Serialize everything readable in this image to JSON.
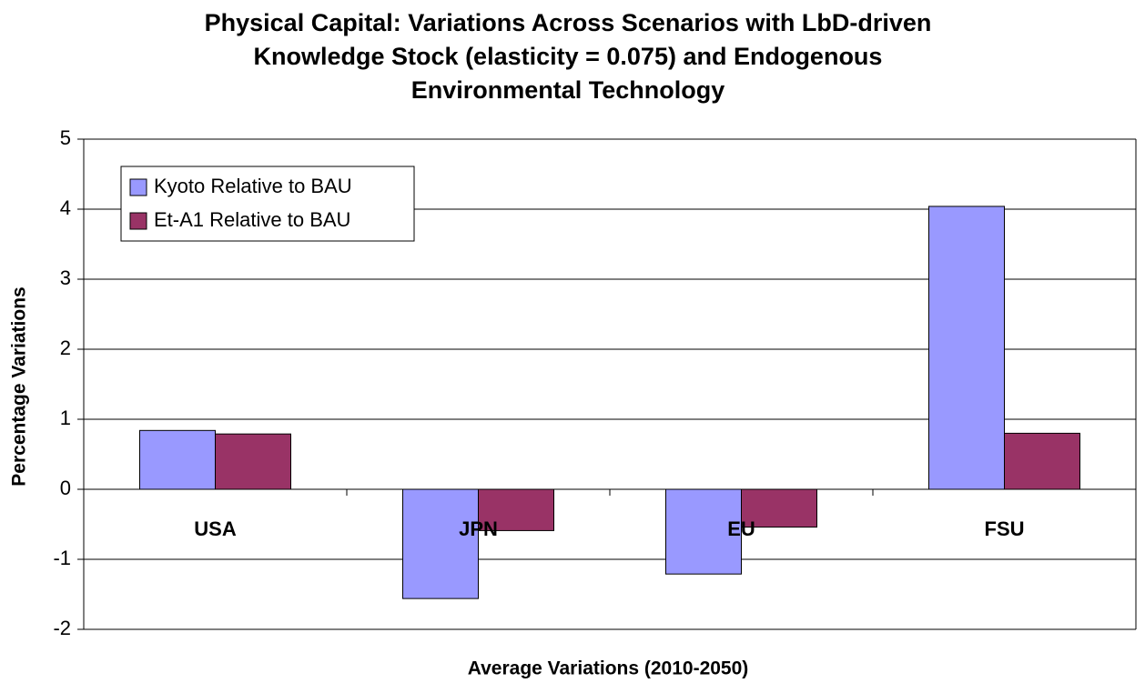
{
  "chart_data": {
    "type": "bar",
    "title": [
      "Physical Capital: Variations Across Scenarios with LbD-driven",
      "Knowledge Stock (elasticity = 0.075) and Endogenous",
      "Environmental Technology"
    ],
    "x_label": "Average Variations (2010-2050)",
    "y_label": "Percentage Variations",
    "categories": [
      "USA",
      "JPN",
      "EU",
      "FSU"
    ],
    "series": [
      {
        "name": "Kyoto Relative to BAU",
        "color": "#9999ff",
        "values": [
          0.84,
          -1.56,
          -1.21,
          4.04
        ]
      },
      {
        "name": "Et-A1 Relative to BAU",
        "color": "#993366",
        "values": [
          0.79,
          -0.59,
          -0.54,
          0.8
        ]
      }
    ],
    "ylim": [
      -2,
      5
    ],
    "yticks": [
      -2,
      -1,
      0,
      1,
      2,
      3,
      4,
      5
    ],
    "grid": true,
    "legend": "upper left"
  }
}
